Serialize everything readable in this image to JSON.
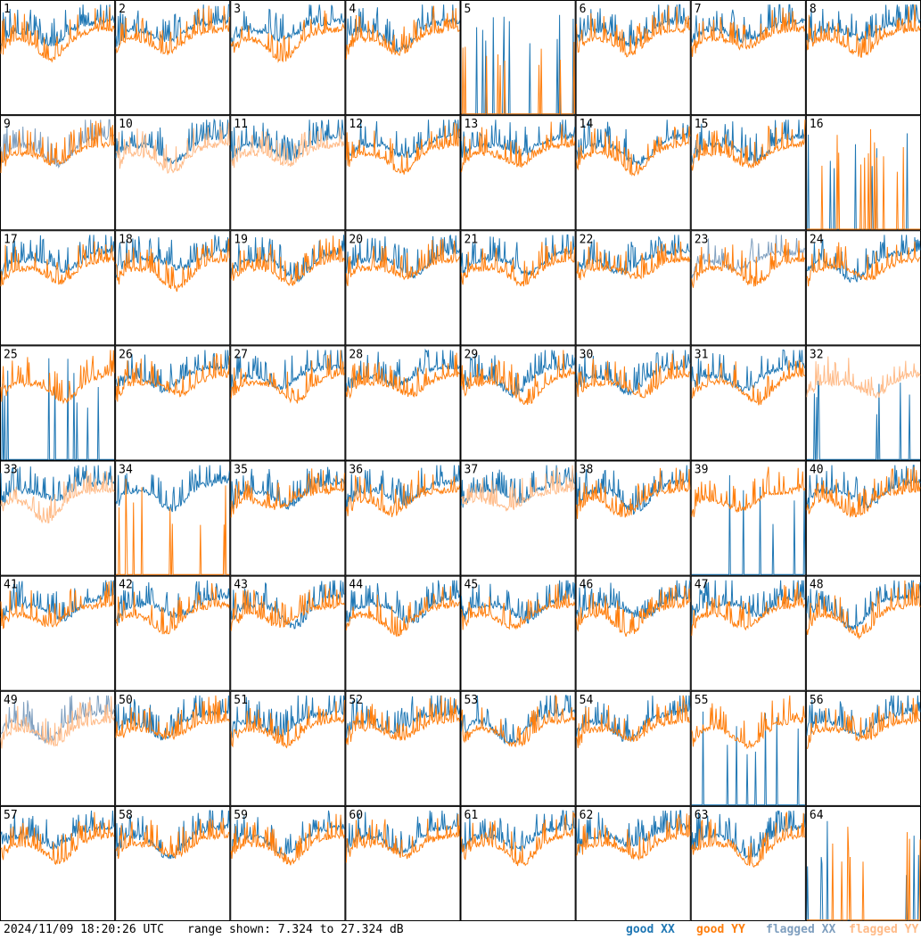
{
  "chart_data": {
    "type": "line",
    "layout": "8x8 small multiples",
    "panel_labels": [
      "1",
      "2",
      "3",
      "4",
      "5",
      "6",
      "7",
      "8",
      "9",
      "10",
      "11",
      "12",
      "13",
      "14",
      "15",
      "16",
      "17",
      "18",
      "19",
      "20",
      "21",
      "22",
      "23",
      "24",
      "25",
      "26",
      "27",
      "28",
      "29",
      "30",
      "31",
      "32",
      "33",
      "34",
      "35",
      "36",
      "37",
      "38",
      "39",
      "40",
      "41",
      "42",
      "43",
      "44",
      "45",
      "46",
      "47",
      "48",
      "49",
      "50",
      "51",
      "52",
      "53",
      "54",
      "55",
      "56",
      "57",
      "58",
      "59",
      "60",
      "61",
      "62",
      "63",
      "64"
    ],
    "ylim": [
      7.324,
      27.324
    ],
    "yunit": "dB",
    "series_legend": [
      {
        "name": "good XX",
        "color": "#1f77b4"
      },
      {
        "name": "good YY",
        "color": "#ff7f0e"
      },
      {
        "name": "flagged XX",
        "color": "#7f9fbf"
      },
      {
        "name": "flagged YY",
        "color": "#ffbb88"
      }
    ],
    "panel_status": {
      "xx_flagged": [
        "9",
        "23",
        "49"
      ],
      "yy_flagged": [
        "10",
        "11",
        "32",
        "33",
        "37",
        "49"
      ],
      "xx_dropout": [
        "5",
        "16",
        "25",
        "32",
        "39",
        "55",
        "64"
      ],
      "yy_dropout": [
        "5",
        "16",
        "34",
        "64"
      ]
    }
  },
  "footer": {
    "timestamp": "2024/11/09 18:20:26 UTC",
    "range_text": "range shown: 7.324 to 27.324 dB",
    "legend": [
      {
        "label": "good XX",
        "color": "#1f77b4"
      },
      {
        "label": "good YY",
        "color": "#ff7f0e"
      },
      {
        "label": "flagged XX",
        "color": "#7f9fbf"
      },
      {
        "label": "flagged YY",
        "color": "#ffbb88"
      }
    ]
  }
}
